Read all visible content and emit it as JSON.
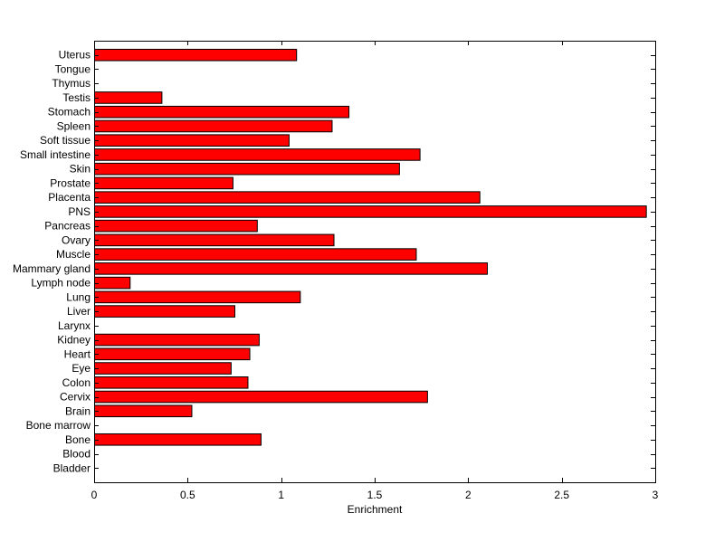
{
  "chart_data": {
    "type": "bar",
    "orientation": "horizontal",
    "categories": [
      "Bladder",
      "Blood",
      "Bone",
      "Bone marrow",
      "Brain",
      "Cervix",
      "Colon",
      "Eye",
      "Heart",
      "Kidney",
      "Larynx",
      "Liver",
      "Lung",
      "Lymph node",
      "Mammary gland",
      "Muscle",
      "Ovary",
      "Pancreas",
      "PNS",
      "Placenta",
      "Prostate",
      "Skin",
      "Small intestine",
      "Soft tissue",
      "Spleen",
      "Stomach",
      "Testis",
      "Thymus",
      "Tongue",
      "Uterus"
    ],
    "values": [
      0,
      0,
      0.89,
      0,
      0.52,
      1.78,
      0.82,
      0.73,
      0.83,
      0.88,
      0,
      0.75,
      1.1,
      0.19,
      2.1,
      1.72,
      1.28,
      0.87,
      2.95,
      2.06,
      0.74,
      1.63,
      1.74,
      1.04,
      1.27,
      1.36,
      0.36,
      0,
      0,
      1.08
    ],
    "title": "",
    "xlabel": "Enrichment",
    "ylabel": "",
    "xlim": [
      0,
      3
    ],
    "xticks": [
      0,
      0.5,
      1,
      1.5,
      2,
      2.5,
      3
    ],
    "xtick_labels": [
      "0",
      "0.5",
      "1",
      "1.5",
      "2",
      "2.5",
      "3"
    ],
    "grid": false,
    "bar_color": "#ff0000",
    "bar_edge_color": "#000000"
  }
}
